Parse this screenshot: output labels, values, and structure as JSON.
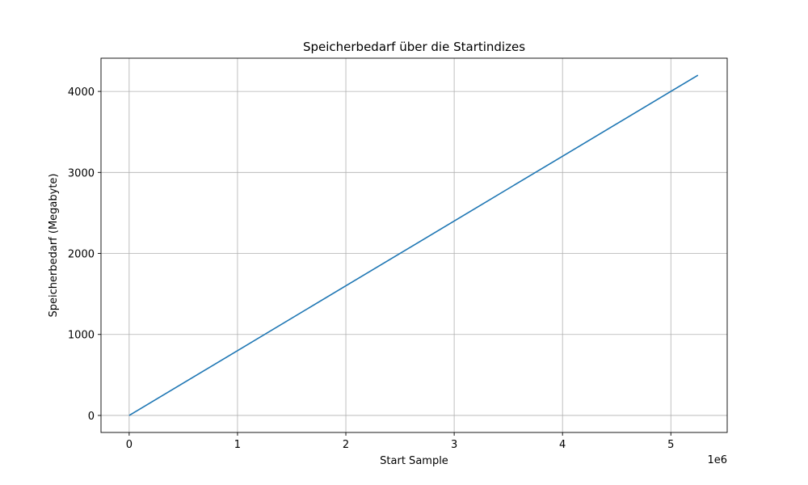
{
  "chart_data": {
    "type": "line",
    "title": "Speicherbedarf über die Startindizes",
    "xlabel": "Start Sample",
    "ylabel": "Speicherbedarf (Megabyte)",
    "x_offset_text": "1e6",
    "xlim": [
      -260000,
      5520000
    ],
    "ylim": [
      -210,
      4410
    ],
    "x_ticks": [
      0,
      1000000,
      2000000,
      3000000,
      4000000,
      5000000
    ],
    "x_tick_labels": [
      "0",
      "1",
      "2",
      "3",
      "4",
      "5"
    ],
    "y_ticks": [
      0,
      1000,
      2000,
      3000,
      4000
    ],
    "y_tick_labels": [
      "0",
      "1000",
      "2000",
      "3000",
      "4000"
    ],
    "grid": true,
    "series": [
      {
        "x": [
          0,
          1000000,
          2000000,
          3000000,
          4000000,
          5000000,
          5250000
        ],
        "y": [
          0,
          800,
          1600,
          2400,
          3200,
          4000,
          4200
        ]
      }
    ],
    "colors": {
      "line": "#1f77b4",
      "grid": "#b0b0b0",
      "axes": "#000000"
    }
  }
}
